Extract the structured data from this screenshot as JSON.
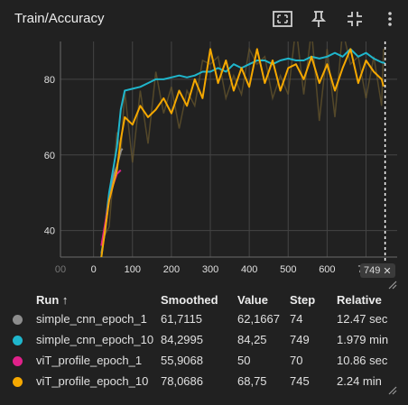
{
  "card": {
    "title": "Train/Accuracy",
    "icons": [
      "fit-domain-icon",
      "pin-icon",
      "collapse-icon",
      "more-vert-icon"
    ]
  },
  "chart_data": {
    "type": "line",
    "title": "Train/Accuracy",
    "xlim": [
      -85,
      780
    ],
    "ylim": [
      33,
      90
    ],
    "x_ticks": [
      "00",
      "0",
      "100",
      "200",
      "300",
      "400",
      "500",
      "600",
      "700"
    ],
    "x_tick_values": [
      -85,
      0,
      100,
      200,
      300,
      400,
      500,
      600,
      700
    ],
    "y_ticks": [
      "40",
      "60",
      "80"
    ],
    "y_tick_values": [
      40,
      60,
      80
    ],
    "grid": true,
    "hover_step": 749,
    "hover_badge": "749",
    "series": [
      {
        "name": "simple_cnn_epoch_1",
        "color": "#8d8d8d",
        "x": [
          20,
          30,
          40,
          50,
          60,
          70,
          74
        ],
        "y": [
          34,
          40,
          49,
          54,
          57,
          61,
          61.7
        ]
      },
      {
        "name": "simple_cnn_epoch_10",
        "color": "#1fb6cc",
        "x": [
          20,
          40,
          60,
          70,
          80,
          100,
          120,
          140,
          160,
          180,
          200,
          220,
          240,
          260,
          280,
          300,
          320,
          340,
          360,
          380,
          400,
          420,
          440,
          460,
          480,
          500,
          520,
          540,
          560,
          580,
          600,
          620,
          640,
          660,
          680,
          700,
          720,
          740,
          749
        ],
        "y": [
          33,
          50,
          62,
          72,
          77,
          77.5,
          78,
          79,
          80,
          80,
          80.5,
          81,
          80.5,
          81,
          82,
          82,
          83,
          82,
          84,
          83,
          84,
          85,
          85,
          84,
          85,
          85.5,
          85,
          85,
          86,
          85.5,
          86,
          87,
          86,
          88,
          86,
          87,
          85.5,
          84.5,
          84.3
        ]
      },
      {
        "name": "viT_profile_epoch_1",
        "color": "#e0218a",
        "x": [
          20,
          30,
          40,
          50,
          60,
          70
        ],
        "y": [
          36,
          42,
          48,
          52,
          55,
          56
        ]
      },
      {
        "name": "viT_profile_epoch_10",
        "color": "#f5a800",
        "x": [
          20,
          40,
          60,
          70,
          80,
          100,
          120,
          140,
          160,
          180,
          200,
          220,
          240,
          260,
          280,
          300,
          320,
          340,
          360,
          380,
          400,
          420,
          440,
          460,
          480,
          500,
          520,
          540,
          560,
          580,
          600,
          620,
          640,
          660,
          680,
          700,
          720,
          740,
          745
        ],
        "y": [
          33,
          48,
          56,
          64,
          70,
          68,
          73,
          70,
          72,
          75,
          71,
          77,
          73,
          80,
          75,
          88,
          79,
          85,
          77,
          83,
          78,
          88,
          79,
          85,
          77,
          83,
          84,
          80,
          86,
          79,
          84,
          77,
          83,
          88,
          79,
          85,
          82,
          80,
          78.1
        ]
      }
    ]
  },
  "legend": {
    "headers": {
      "run": "Run ↑",
      "smoothed": "Smoothed",
      "value": "Value",
      "step": "Step",
      "relative": "Relative"
    },
    "rows": [
      {
        "color": "#8d8d8d",
        "run": "simple_cnn_epoch_1",
        "smoothed": "61,7115",
        "value": "62,1667",
        "step": "74",
        "relative": "12.47 sec"
      },
      {
        "color": "#1fb6cc",
        "run": "simple_cnn_epoch_10",
        "smoothed": "84,2995",
        "value": "84,25",
        "step": "749",
        "relative": "1.979 min"
      },
      {
        "color": "#e0218a",
        "run": "viT_profile_epoch_1",
        "smoothed": "55,9068",
        "value": "50",
        "step": "70",
        "relative": "10.86 sec"
      },
      {
        "color": "#f5a800",
        "run": "viT_profile_epoch_10",
        "smoothed": "78,0686",
        "value": "68,75",
        "step": "745",
        "relative": "2.24 min"
      }
    ]
  }
}
